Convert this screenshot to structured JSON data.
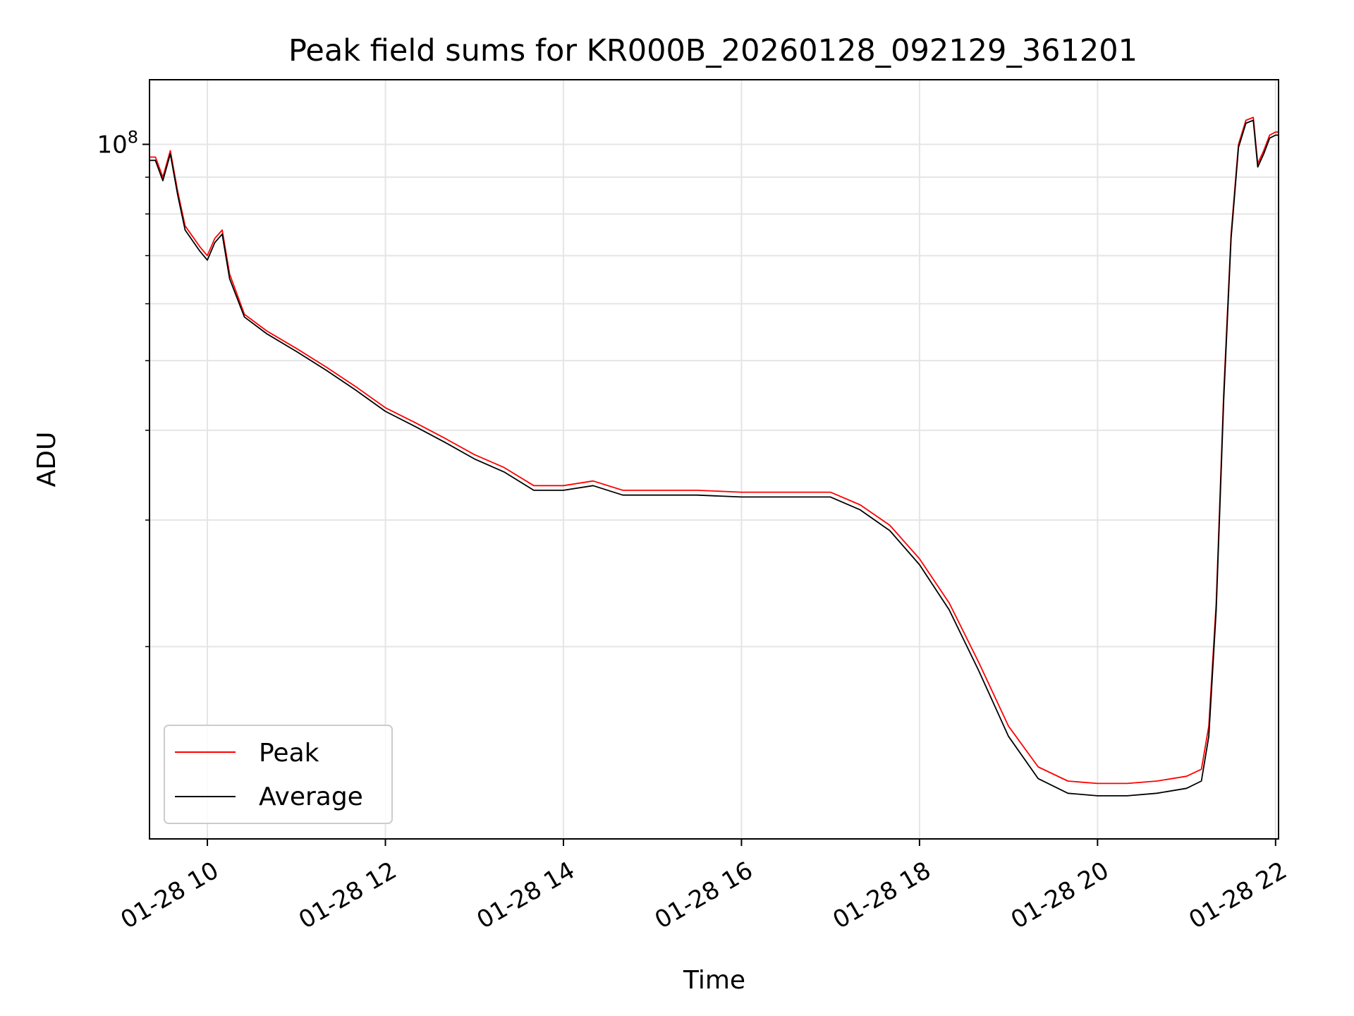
{
  "chart_data": {
    "type": "line",
    "title": "Peak field sums for KR000B_20260128_092129_361201",
    "xlabel": "Time",
    "ylabel": "ADU",
    "x_axis": "time",
    "xlim": [
      "2026-01-28 09:21",
      "2026-01-28 22:02"
    ],
    "xticks": [
      {
        "t": "2026-01-28 10:00",
        "label": "01-28 10"
      },
      {
        "t": "2026-01-28 12:00",
        "label": "01-28 12"
      },
      {
        "t": "2026-01-28 14:00",
        "label": "01-28 14"
      },
      {
        "t": "2026-01-28 16:00",
        "label": "01-28 16"
      },
      {
        "t": "2026-01-28 18:00",
        "label": "01-28 18"
      },
      {
        "t": "2026-01-28 20:00",
        "label": "01-28 20"
      },
      {
        "t": "2026-01-28 22:00",
        "label": "01-28 22"
      }
    ],
    "y_scale": "log",
    "ylim": [
      10800000,
      123000000
    ],
    "yticks_major": [
      {
        "v": 100000000,
        "base": "10",
        "exp": "8"
      }
    ],
    "yticks_minor": [
      20000000,
      30000000,
      40000000,
      50000000,
      60000000,
      70000000,
      80000000,
      90000000
    ],
    "grid": true,
    "legend_position": "lower-left",
    "series": [
      {
        "name": "Peak",
        "color": "#ff0000",
        "x": [
          "2026-01-28 09:21",
          "2026-01-28 09:25",
          "2026-01-28 09:30",
          "2026-01-28 09:35",
          "2026-01-28 09:40",
          "2026-01-28 09:45",
          "2026-01-28 09:55",
          "2026-01-28 10:00",
          "2026-01-28 10:05",
          "2026-01-28 10:10",
          "2026-01-28 10:15",
          "2026-01-28 10:25",
          "2026-01-28 10:40",
          "2026-01-28 11:00",
          "2026-01-28 11:20",
          "2026-01-28 11:40",
          "2026-01-28 12:00",
          "2026-01-28 12:20",
          "2026-01-28 12:40",
          "2026-01-28 13:00",
          "2026-01-28 13:20",
          "2026-01-28 13:40",
          "2026-01-28 14:00",
          "2026-01-28 14:20",
          "2026-01-28 14:40",
          "2026-01-28 15:00",
          "2026-01-28 15:30",
          "2026-01-28 16:00",
          "2026-01-28 16:30",
          "2026-01-28 17:00",
          "2026-01-28 17:20",
          "2026-01-28 17:40",
          "2026-01-28 18:00",
          "2026-01-28 18:20",
          "2026-01-28 18:40",
          "2026-01-28 19:00",
          "2026-01-28 19:20",
          "2026-01-28 19:40",
          "2026-01-28 20:00",
          "2026-01-28 20:20",
          "2026-01-28 20:40",
          "2026-01-28 21:00",
          "2026-01-28 21:10",
          "2026-01-28 21:15",
          "2026-01-28 21:20",
          "2026-01-28 21:25",
          "2026-01-28 21:30",
          "2026-01-28 21:35",
          "2026-01-28 21:40",
          "2026-01-28 21:45",
          "2026-01-28 21:48",
          "2026-01-28 21:52",
          "2026-01-28 21:56",
          "2026-01-28 22:00",
          "2026-01-28 22:02"
        ],
        "y": [
          96000000,
          96000000,
          90000000,
          98000000,
          86000000,
          77000000,
          72000000,
          70000000,
          74000000,
          76000000,
          66000000,
          58000000,
          55000000,
          52000000,
          49000000,
          46000000,
          43000000,
          41000000,
          39000000,
          37000000,
          35500000,
          33500000,
          33500000,
          34000000,
          33000000,
          33000000,
          33000000,
          32800000,
          32800000,
          32800000,
          31500000,
          29500000,
          26500000,
          23000000,
          19000000,
          15500000,
          13600000,
          13000000,
          12900000,
          12900000,
          13000000,
          13200000,
          13500000,
          15500000,
          23000000,
          45000000,
          75000000,
          100000000,
          108000000,
          109000000,
          94000000,
          98000000,
          103000000,
          104000000,
          104000000
        ]
      },
      {
        "name": "Average",
        "color": "#000000",
        "x": [
          "2026-01-28 09:21",
          "2026-01-28 09:25",
          "2026-01-28 09:30",
          "2026-01-28 09:35",
          "2026-01-28 09:40",
          "2026-01-28 09:45",
          "2026-01-28 09:55",
          "2026-01-28 10:00",
          "2026-01-28 10:05",
          "2026-01-28 10:10",
          "2026-01-28 10:15",
          "2026-01-28 10:25",
          "2026-01-28 10:40",
          "2026-01-28 11:00",
          "2026-01-28 11:20",
          "2026-01-28 11:40",
          "2026-01-28 12:00",
          "2026-01-28 12:20",
          "2026-01-28 12:40",
          "2026-01-28 13:00",
          "2026-01-28 13:20",
          "2026-01-28 13:40",
          "2026-01-28 14:00",
          "2026-01-28 14:20",
          "2026-01-28 14:40",
          "2026-01-28 15:00",
          "2026-01-28 15:30",
          "2026-01-28 16:00",
          "2026-01-28 16:30",
          "2026-01-28 17:00",
          "2026-01-28 17:20",
          "2026-01-28 17:40",
          "2026-01-28 18:00",
          "2026-01-28 18:20",
          "2026-01-28 18:40",
          "2026-01-28 19:00",
          "2026-01-28 19:20",
          "2026-01-28 19:40",
          "2026-01-28 20:00",
          "2026-01-28 20:20",
          "2026-01-28 20:40",
          "2026-01-28 21:00",
          "2026-01-28 21:10",
          "2026-01-28 21:15",
          "2026-01-28 21:20",
          "2026-01-28 21:25",
          "2026-01-28 21:30",
          "2026-01-28 21:35",
          "2026-01-28 21:40",
          "2026-01-28 21:45",
          "2026-01-28 21:48",
          "2026-01-28 21:52",
          "2026-01-28 21:56",
          "2026-01-28 22:00",
          "2026-01-28 22:02"
        ],
        "y": [
          95000000,
          95000000,
          89000000,
          97000000,
          85000000,
          76000000,
          71000000,
          69000000,
          73000000,
          75000000,
          65000000,
          57500000,
          54500000,
          51500000,
          48500000,
          45500000,
          42500000,
          40500000,
          38500000,
          36500000,
          35000000,
          33000000,
          33000000,
          33500000,
          32500000,
          32500000,
          32500000,
          32300000,
          32300000,
          32300000,
          31000000,
          29000000,
          26000000,
          22500000,
          18500000,
          15000000,
          13100000,
          12500000,
          12400000,
          12400000,
          12500000,
          12700000,
          13000000,
          15000000,
          22500000,
          44000000,
          74000000,
          99000000,
          107000000,
          108000000,
          93000000,
          97000000,
          102000000,
          103000000,
          103000000
        ]
      }
    ]
  }
}
